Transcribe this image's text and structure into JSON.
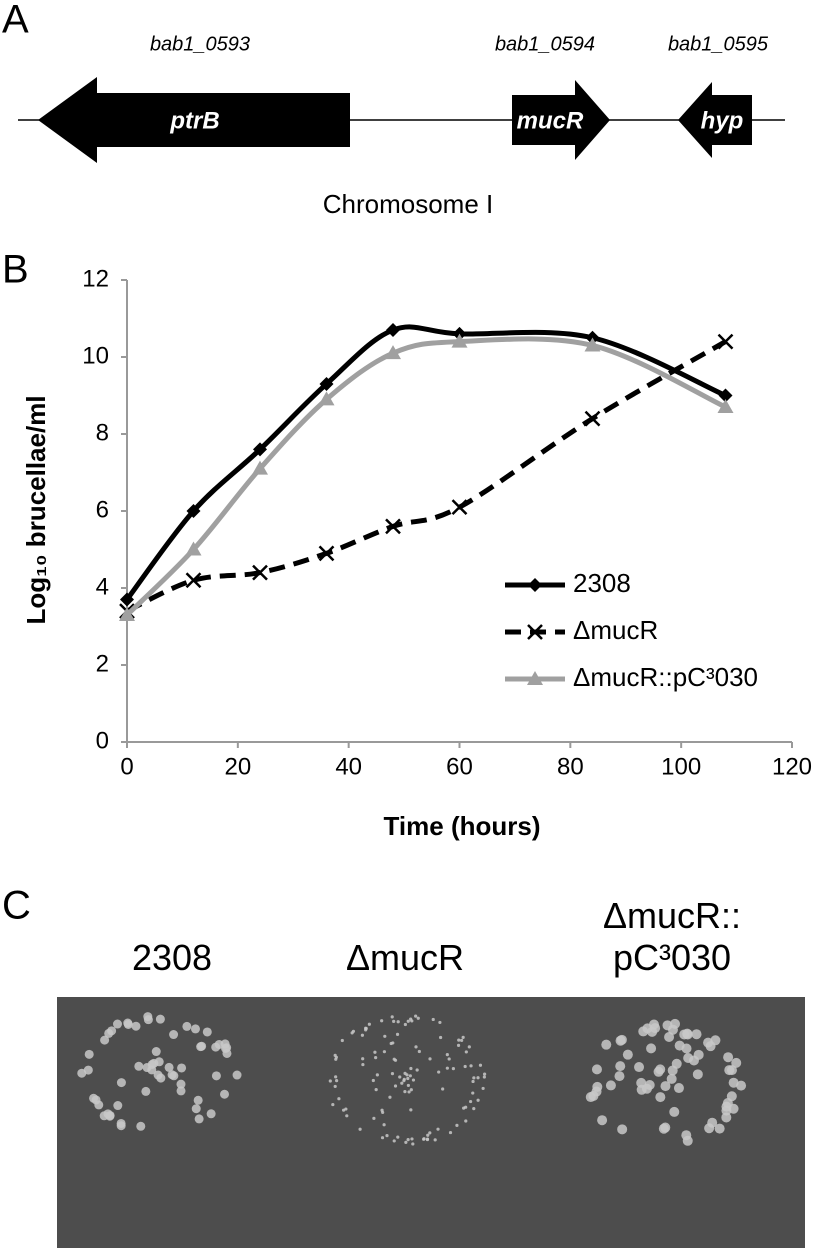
{
  "panel_a": {
    "label": "A",
    "genes": [
      {
        "locus": "bab1_0593",
        "name": "ptrB"
      },
      {
        "locus": "bab1_0594",
        "name": "mucR"
      },
      {
        "locus": "bab1_0595",
        "name": "hyp"
      }
    ],
    "caption": "Chromosome I"
  },
  "panel_b": {
    "label": "B"
  },
  "chart_data": {
    "type": "line",
    "xlabel": "Time (hours)",
    "ylabel": "Log₁₀ brucellae/ml",
    "x": [
      0,
      12,
      24,
      36,
      48,
      60,
      84,
      108
    ],
    "series": [
      {
        "name": "2308",
        "color": "#000000",
        "line_style": "solid",
        "marker": "diamond",
        "values": [
          3.7,
          6.0,
          7.6,
          9.3,
          10.7,
          10.6,
          10.5,
          9.0
        ]
      },
      {
        "name": "ΔmucR",
        "color": "#000000",
        "line_style": "dashed",
        "marker": "x",
        "values": [
          3.4,
          4.2,
          4.4,
          4.9,
          5.6,
          6.1,
          8.4,
          10.4
        ]
      },
      {
        "name": "ΔmucR::pC³030",
        "color": "#a0a0a0",
        "line_style": "solid",
        "marker": "triangle",
        "values": [
          3.3,
          5.0,
          7.1,
          8.9,
          10.1,
          10.4,
          10.3,
          8.7
        ]
      }
    ],
    "xlim": [
      0,
      120
    ],
    "xticks": [
      0,
      20,
      40,
      60,
      80,
      100,
      120
    ],
    "ylim": [
      0,
      12
    ],
    "yticks": [
      0,
      2,
      4,
      6,
      8,
      10,
      12
    ],
    "grid": false,
    "legend": "lower right"
  },
  "panel_c": {
    "label": "C",
    "plates": [
      "2308",
      "ΔmucR",
      "ΔmucR::\npC³030"
    ]
  }
}
